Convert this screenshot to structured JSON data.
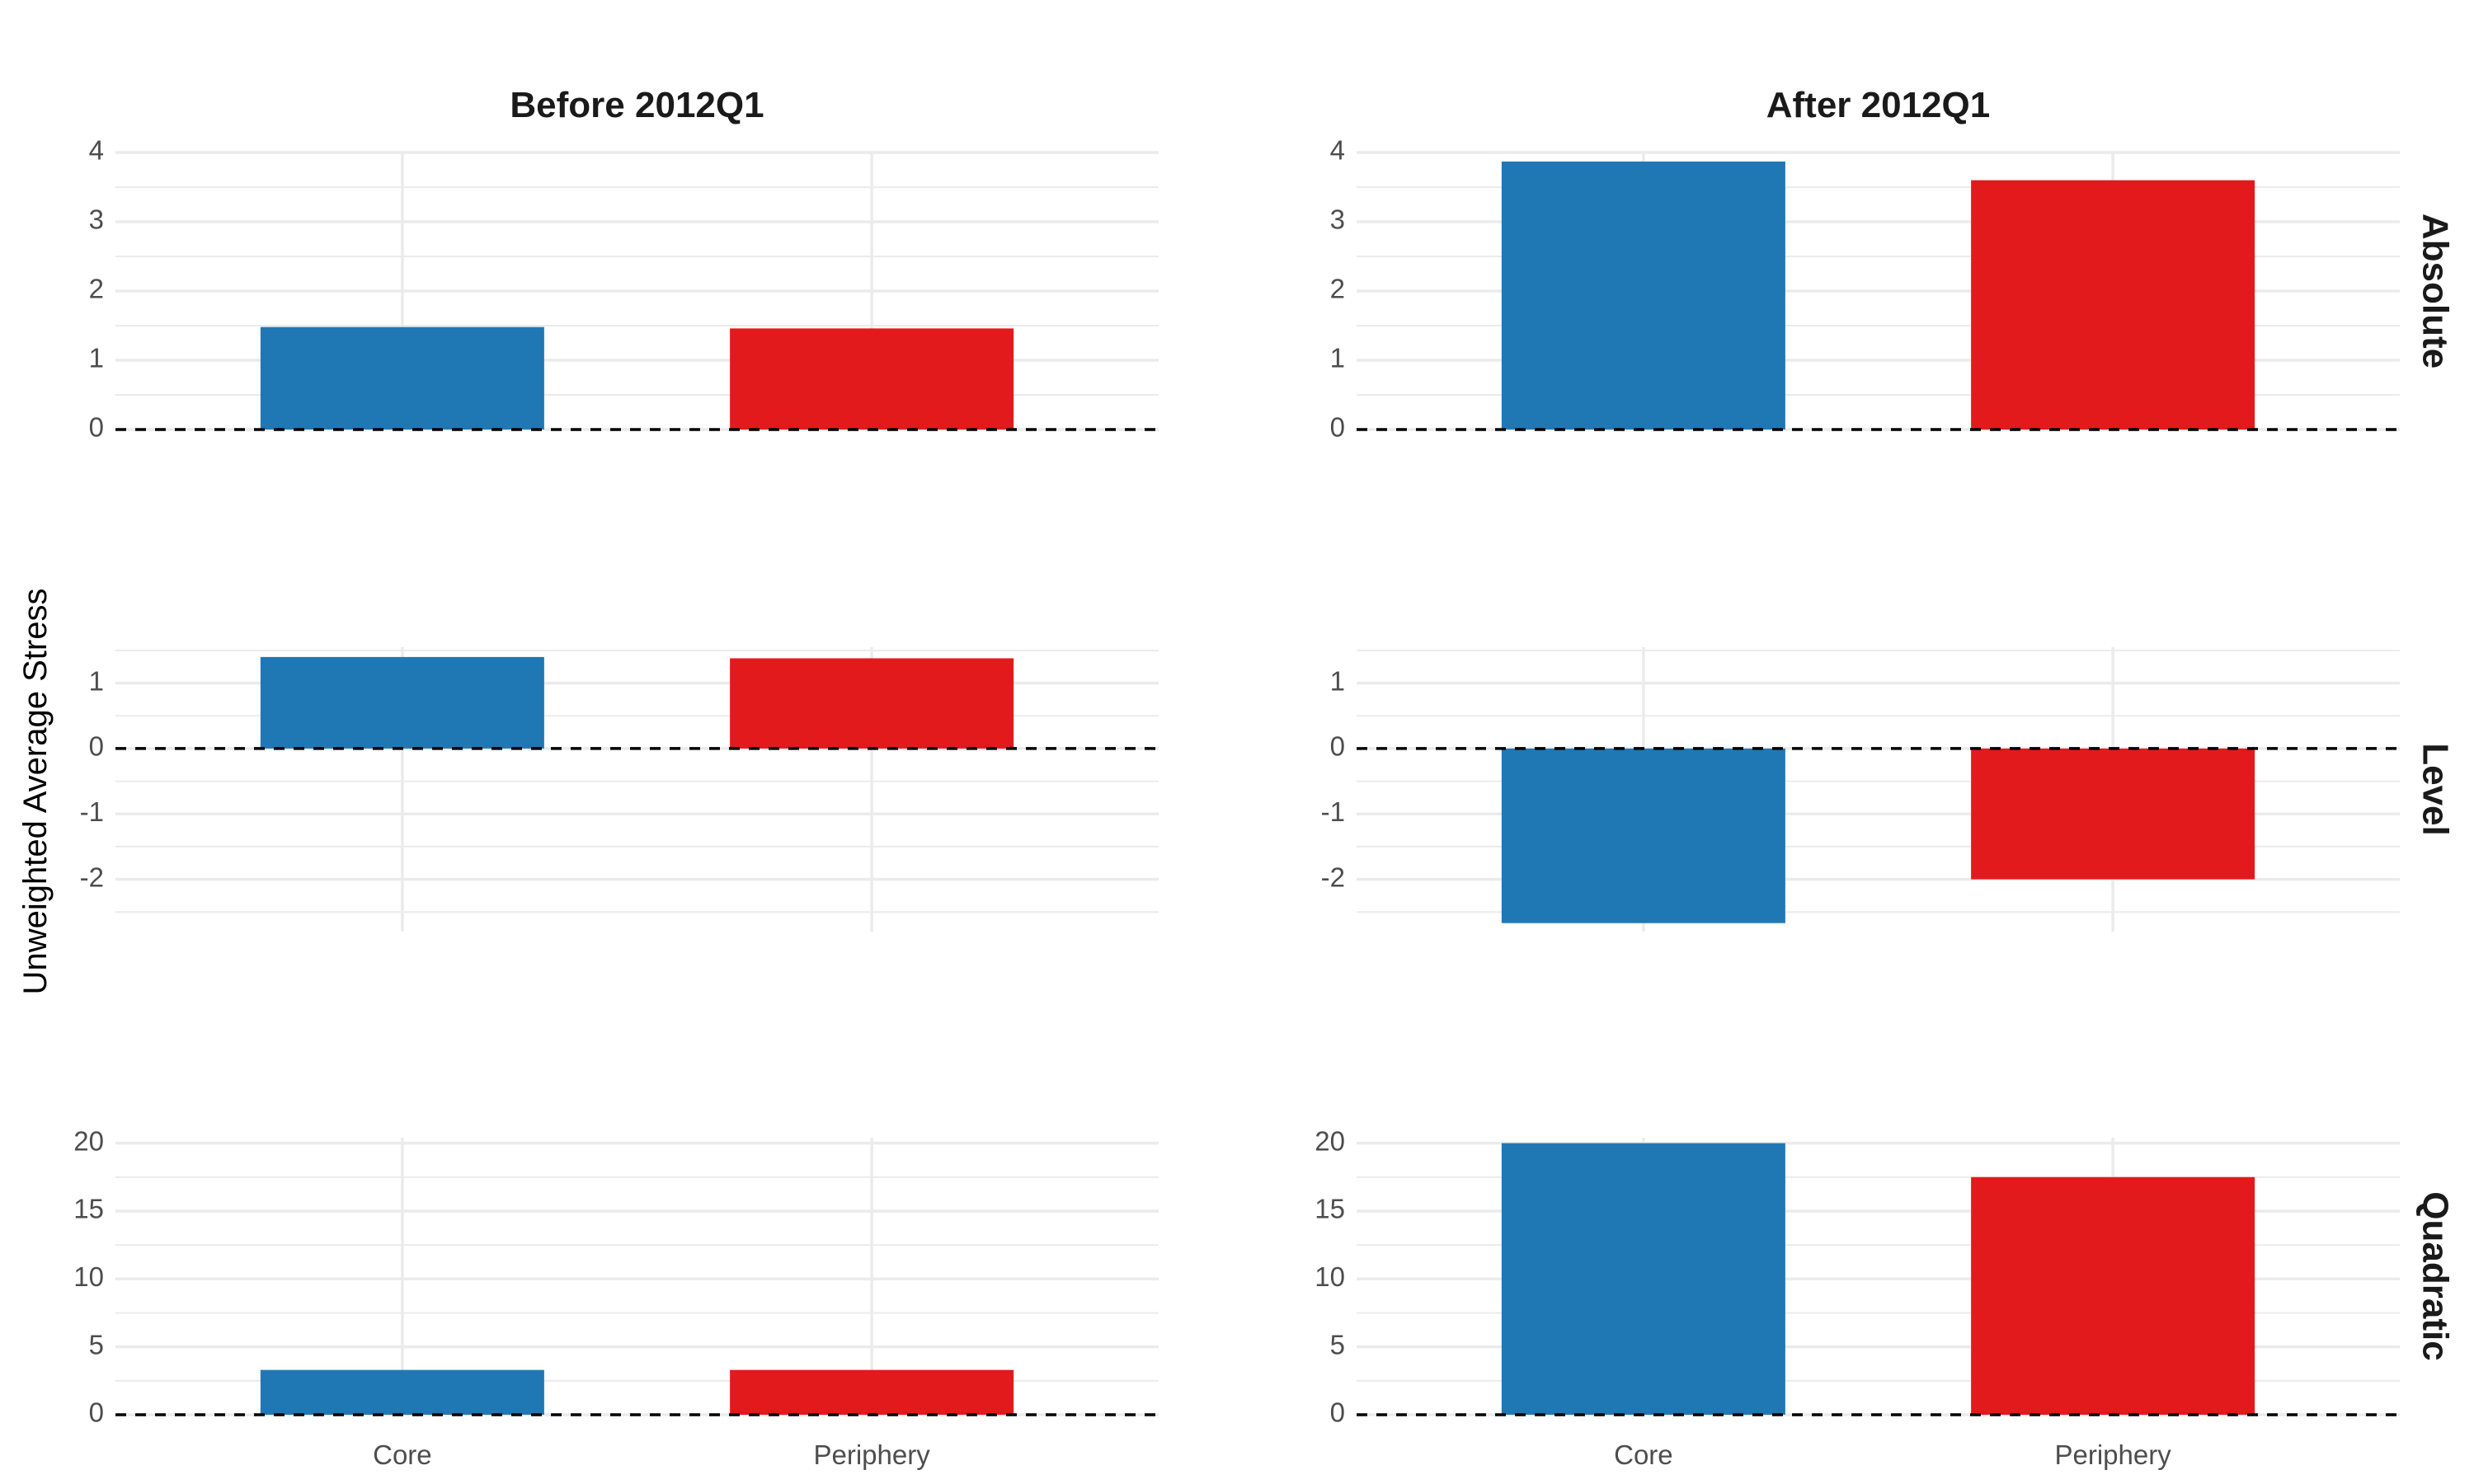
{
  "chart_data": {
    "type": "bar",
    "ylabel": "Unweighted Average Stress",
    "xlabel": "",
    "colors": {
      "Core": "#1f78b4",
      "Periphery": "#e31a1c"
    },
    "columns": [
      {
        "label": "Before 2012Q1"
      },
      {
        "label": "After 2012Q1"
      }
    ],
    "rows": [
      {
        "label": "Absolute",
        "ylim": [
          0,
          4
        ],
        "ticks": [
          "0",
          "1",
          "2",
          "3",
          "4"
        ]
      },
      {
        "label": "Level",
        "ylim": [
          -2.8,
          1.55
        ],
        "ticks": [
          "-2",
          "-1",
          "0",
          "1"
        ]
      },
      {
        "label": "Quadratic",
        "ylim": [
          0,
          20.4
        ],
        "ticks": [
          "0",
          "5",
          "10",
          "15",
          "20"
        ]
      }
    ],
    "categories": [
      "Core",
      "Periphery"
    ],
    "panels": [
      {
        "row": "Absolute",
        "column": "Before 2012Q1",
        "values": [
          1.48,
          1.46
        ]
      },
      {
        "row": "Absolute",
        "column": "After 2012Q1",
        "values": [
          3.87,
          3.6
        ]
      },
      {
        "row": "Level",
        "column": "Before 2012Q1",
        "values": [
          1.4,
          1.38
        ]
      },
      {
        "row": "Level",
        "column": "After 2012Q1",
        "values": [
          -2.67,
          -2.0
        ]
      },
      {
        "row": "Quadratic",
        "column": "Before 2012Q1",
        "values": [
          3.3,
          3.3
        ]
      },
      {
        "row": "Quadratic",
        "column": "After 2012Q1",
        "values": [
          20.0,
          17.5
        ]
      }
    ],
    "grid": true,
    "legend": "none"
  }
}
